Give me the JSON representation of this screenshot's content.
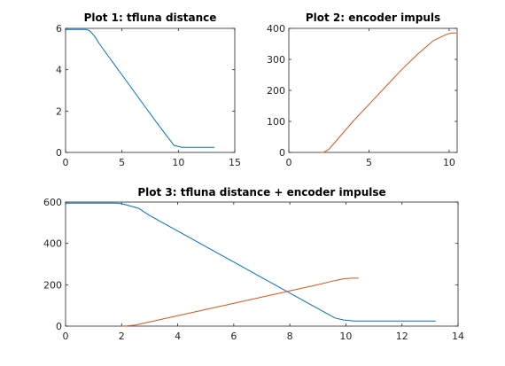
{
  "colors": {
    "series1": "#0072BD",
    "series2": "#D95319",
    "axis": "#262626",
    "background": "#ffffff"
  },
  "chart_data": [
    {
      "type": "line",
      "title": "Plot 1: tfluna distance",
      "xlabel": "",
      "ylabel": "",
      "xlim": [
        0,
        15
      ],
      "ylim": [
        0,
        6
      ],
      "xticks": [
        0,
        5,
        10,
        15
      ],
      "yticks": [
        0,
        2,
        4,
        6
      ],
      "grid": false,
      "series": [
        {
          "color_key": "series1",
          "x": [
            0,
            1.0,
            1.8,
            2.0,
            2.2,
            2.6,
            3.0,
            4.0,
            5.0,
            6.0,
            7.0,
            8.0,
            9.0,
            9.6,
            9.9,
            10.3,
            11.0,
            12.0,
            13.2
          ],
          "y": [
            5.95,
            5.95,
            5.95,
            5.92,
            5.85,
            5.6,
            5.25,
            4.5,
            3.75,
            3.0,
            2.25,
            1.5,
            0.78,
            0.35,
            0.3,
            0.25,
            0.25,
            0.25,
            0.25
          ]
        }
      ]
    },
    {
      "type": "line",
      "title": "Plot 2: encoder impuls",
      "xlabel": "",
      "ylabel": "",
      "xlim": [
        0,
        10.5
      ],
      "ylim": [
        0,
        400
      ],
      "xticks": [
        0,
        5,
        10
      ],
      "yticks": [
        0,
        100,
        200,
        300,
        400
      ],
      "grid": false,
      "series": [
        {
          "color_key": "series2",
          "x": [
            2.0,
            2.2,
            2.5,
            3.0,
            4.0,
            5.0,
            6.0,
            7.0,
            8.0,
            9.0,
            9.6,
            9.9,
            10.2,
            10.45
          ],
          "y": [
            0,
            1,
            10,
            40,
            100,
            155,
            210,
            265,
            315,
            360,
            375,
            382,
            385,
            385
          ]
        }
      ]
    },
    {
      "type": "line",
      "title": "Plot 3: tfluna distance + encoder impulse",
      "xlabel": "",
      "ylabel": "",
      "xlim": [
        0,
        14
      ],
      "ylim": [
        0,
        600
      ],
      "xticks": [
        0,
        2,
        4,
        6,
        8,
        10,
        12,
        14
      ],
      "yticks": [
        0,
        200,
        400,
        600
      ],
      "grid": false,
      "series": [
        {
          "color_key": "series1",
          "x": [
            0,
            1.0,
            1.8,
            2.0,
            2.2,
            2.6,
            3.0,
            4.0,
            5.0,
            6.0,
            7.0,
            8.0,
            9.0,
            9.6,
            9.9,
            10.3,
            11.0,
            12.0,
            13.2
          ],
          "y": [
            595,
            595,
            595,
            592,
            585,
            570,
            535,
            460,
            385,
            310,
            235,
            160,
            85,
            40,
            30,
            25,
            25,
            25,
            25
          ]
        },
        {
          "color_key": "series2",
          "x": [
            2.0,
            2.2,
            2.5,
            3.0,
            4.0,
            5.0,
            6.0,
            7.0,
            8.0,
            9.0,
            9.6,
            9.9,
            10.2,
            10.45
          ],
          "y": [
            0,
            1,
            5,
            20,
            50,
            80,
            110,
            140,
            170,
            200,
            220,
            228,
            232,
            232
          ]
        }
      ]
    }
  ]
}
